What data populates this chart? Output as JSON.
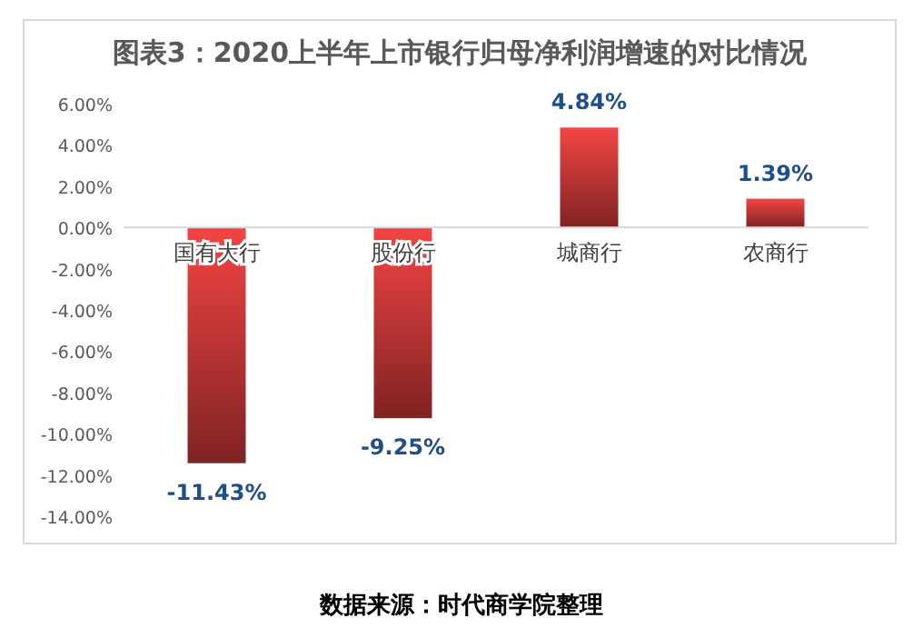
{
  "chart_data": {
    "type": "bar",
    "title": "图表3：2020上半年上市银行归母净利润增速的对比情况",
    "categories": [
      "国有大行",
      "股份行",
      "城商行",
      "农商行"
    ],
    "values": [
      -11.43,
      -9.25,
      4.84,
      1.39
    ],
    "value_labels": [
      "-11.43%",
      "-9.25%",
      "4.84%",
      "1.39%"
    ],
    "color": "#f44444",
    "ylim": [
      -14,
      6
    ],
    "yticks": [
      {
        "value": 6,
        "label": "6.00%"
      },
      {
        "value": 4,
        "label": "4.00%"
      },
      {
        "value": 2,
        "label": "2.00%"
      },
      {
        "value": 0,
        "label": "0.00%"
      },
      {
        "value": -2,
        "label": "-2.00%"
      },
      {
        "value": -4,
        "label": "-4.00%"
      },
      {
        "value": -6,
        "label": "-6.00%"
      },
      {
        "value": -8,
        "label": "-8.00%"
      },
      {
        "value": -10,
        "label": "-10.00%"
      },
      {
        "value": -12,
        "label": "-12.00%"
      },
      {
        "value": -14,
        "label": "-14.00%"
      }
    ],
    "grid": false,
    "annotations": [
      "数据来源：时代商学院整理"
    ]
  }
}
